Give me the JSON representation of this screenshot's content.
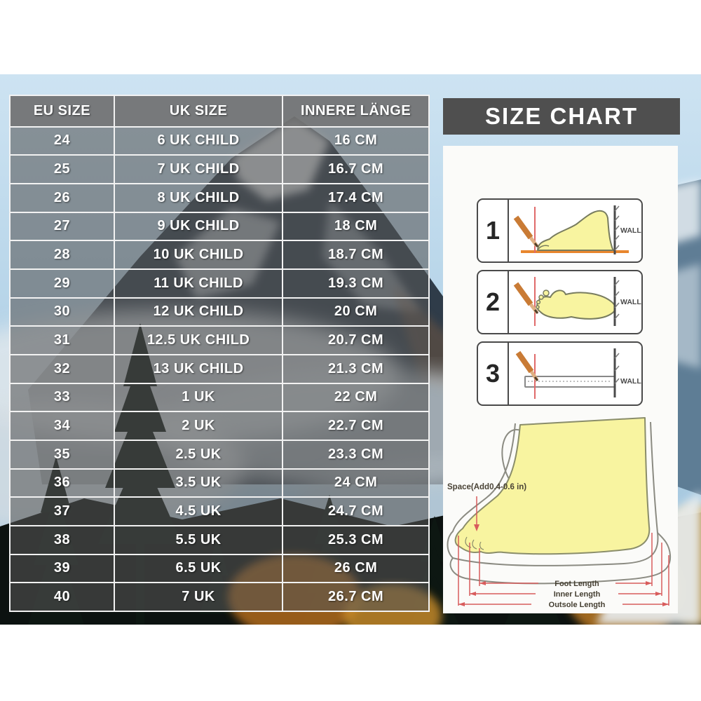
{
  "chart_data": {
    "type": "table",
    "title": "SIZE CHART",
    "columns": [
      "EU SIZE",
      "UK SIZE",
      "INNERE LÄNGE"
    ],
    "rows": [
      [
        "24",
        "6 UK CHILD",
        "16 CM"
      ],
      [
        "25",
        "7 UK CHILD",
        "16.7 CM"
      ],
      [
        "26",
        "8 UK CHILD",
        "17.4 CM"
      ],
      [
        "27",
        "9 UK CHILD",
        "18 CM"
      ],
      [
        "28",
        "10 UK CHILD",
        "18.7 CM"
      ],
      [
        "29",
        "11 UK CHILD",
        "19.3 CM"
      ],
      [
        "30",
        "12 UK CHILD",
        "20 CM"
      ],
      [
        "31",
        "12.5 UK CHILD",
        "20.7 CM"
      ],
      [
        "32",
        "13 UK CHILD",
        "21.3 CM"
      ],
      [
        "33",
        "1 UK",
        "22 CM"
      ],
      [
        "34",
        "2 UK",
        "22.7 CM"
      ],
      [
        "35",
        "2.5 UK",
        "23.3 CM"
      ],
      [
        "36",
        "3.5 UK",
        "24 CM"
      ],
      [
        "37",
        "4.5 UK",
        "24.7 CM"
      ],
      [
        "38",
        "5.5 UK",
        "25.3 CM"
      ],
      [
        "39",
        "6.5 UK",
        "26 CM"
      ],
      [
        "40",
        "7 UK",
        "26.7 CM"
      ]
    ]
  },
  "side_panel": {
    "title": "SIZE CHART",
    "steps": [
      {
        "number": "1",
        "wall_label": "WALL"
      },
      {
        "number": "2",
        "wall_label": "WALL"
      },
      {
        "number": "3",
        "wall_label": "WALL"
      }
    ],
    "foot_diagram": {
      "space_label": "Space(Add0.4-0.6 in)",
      "foot_length_label": "Foot Length",
      "inner_length_label": "Inner Length",
      "outsole_length_label": "Outsole Length"
    }
  },
  "colors": {
    "title_box_bg": "#4f4f4f",
    "table_overlay_gray": "rgba(86,86,86,0.58)",
    "grid_line_white": "#f2f2f2",
    "table_text": "#ffffff",
    "panel_bg": "#fbfbf9",
    "foot_yellow": "#f8f4a0",
    "dimension_red": "#d85c5c",
    "pencil_orange": "#c97b35",
    "ground_orange": "#e8862e",
    "sky_blue": "#bcd9ec",
    "forest_dark": "#0c1210"
  }
}
